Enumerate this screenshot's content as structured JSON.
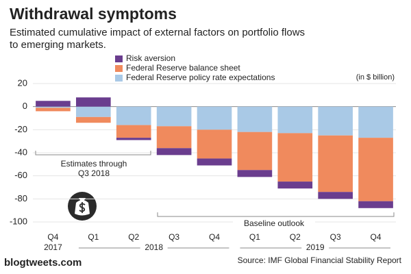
{
  "chart_data": {
    "type": "stacked_bar",
    "title": "Withdrawal symptoms",
    "subtitle": [
      "Estimated cumulative impact of external factors on portfolio flows",
      "to emerging markets."
    ],
    "unit_note": "(in $ billion)",
    "categories": [
      "Q4",
      "Q1",
      "Q2",
      "Q3",
      "Q4",
      "Q1",
      "Q2",
      "Q3",
      "Q4"
    ],
    "year_labels": [
      "2017",
      "2018",
      "2019"
    ],
    "series": [
      {
        "name": "Risk aversion",
        "color": "#6a3d8e",
        "values": [
          5,
          8,
          -2,
          -6,
          -6,
          -6,
          -6,
          -6,
          -6
        ]
      },
      {
        "name": "Federal Reserve balance sheet",
        "color": "#f08a5d",
        "values": [
          -3,
          -5,
          -11,
          -19,
          -25,
          -33,
          -42,
          -49,
          -55
        ]
      },
      {
        "name": "Federal Reserve policy rate expectations",
        "color": "#a9c9e6",
        "values": [
          -1,
          -9,
          -16,
          -17,
          -20,
          -22,
          -23,
          -25,
          -27
        ]
      }
    ],
    "ylim": [
      -100,
      20
    ],
    "yticks": [
      20,
      0,
      -20,
      -40,
      -60,
      -80,
      -100
    ],
    "grid": true,
    "estimate_note": [
      "Estimates through",
      "Q3 2018"
    ],
    "baseline_note": "Baseline outlook",
    "source": "Source: IMF Global Financial Stability Report"
  },
  "watermark": "blogtweets.com"
}
